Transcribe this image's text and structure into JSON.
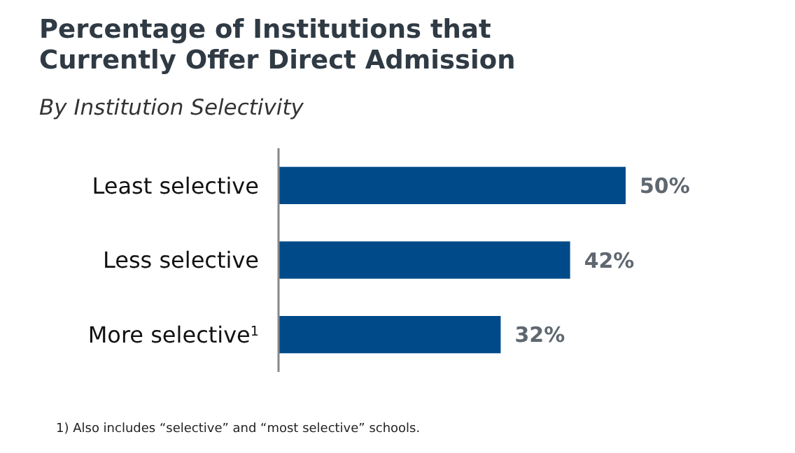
{
  "chart_data": {
    "type": "bar",
    "orientation": "horizontal",
    "title": "Percentage of Institutions that Currently Offer Direct Admission",
    "subtitle": "By Institution Selectivity",
    "categories": [
      "Least selective",
      "Less selective",
      "More selective$^{1}$"
    ],
    "values": [
      50,
      42,
      32
    ],
    "color": "#004a8a",
    "data_labels": true,
    "value_labels": [
      "50%",
      "42%",
      "32%"
    ],
    "annotations": [
      "1)  Also includes “selective” and “most selective” schools."
    ]
  }
}
